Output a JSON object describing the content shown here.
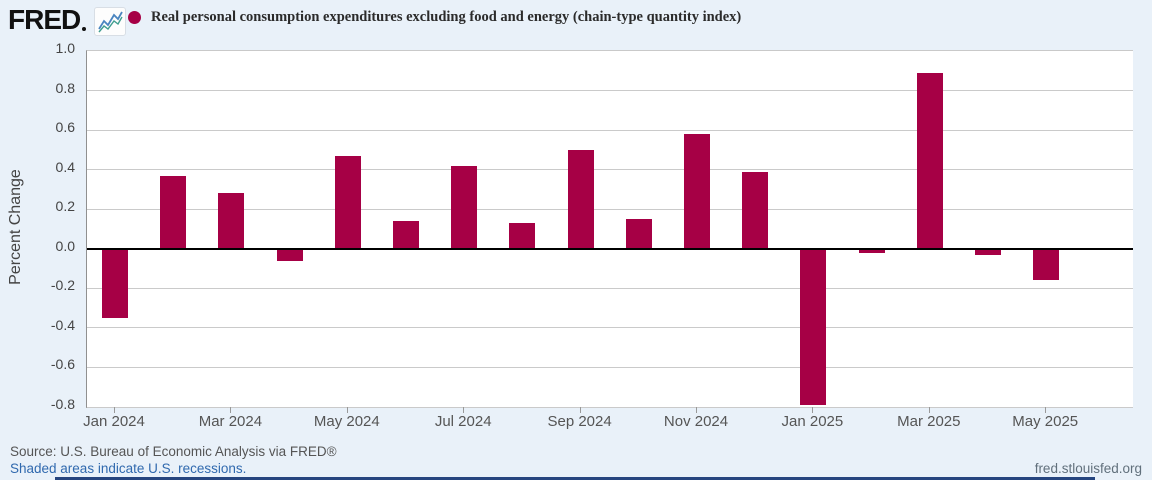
{
  "header": {
    "logo_text": "FRED",
    "title": "Real personal consumption expenditures excluding food and energy (chain-type quantity index)",
    "series_marker_color": "#a60045"
  },
  "chart_data": {
    "type": "bar",
    "title": "Real personal consumption expenditures excluding food and energy (chain-type quantity index)",
    "xlabel": "",
    "ylabel": "Percent Change",
    "ylim": [
      -0.8,
      1.0
    ],
    "ytick_step": 0.2,
    "grid": true,
    "bar_color": "#a60045",
    "categories": [
      "Jan 2024",
      "Feb 2024",
      "Mar 2024",
      "Apr 2024",
      "May 2024",
      "Jun 2024",
      "Jul 2024",
      "Aug 2024",
      "Sep 2024",
      "Oct 2024",
      "Nov 2024",
      "Dec 2024",
      "Jan 2025",
      "Feb 2025",
      "Mar 2025",
      "Apr 2025",
      "May 2025"
    ],
    "values": [
      -0.35,
      0.37,
      0.28,
      -0.06,
      0.47,
      0.14,
      0.42,
      0.13,
      0.5,
      0.15,
      0.58,
      0.39,
      -0.79,
      -0.02,
      0.89,
      -0.03,
      -0.16
    ],
    "xtick_labels": [
      "Jan 2024",
      "Mar 2024",
      "May 2024",
      "Jul 2024",
      "Sep 2024",
      "Nov 2024",
      "Jan 2025",
      "Mar 2025",
      "May 2025"
    ]
  },
  "footer": {
    "source": "Source: U.S. Bureau of Economic Analysis via FRED®",
    "recession_note": "Shaded areas indicate U.S. recessions.",
    "site": "fred.stlouisfed.org"
  }
}
